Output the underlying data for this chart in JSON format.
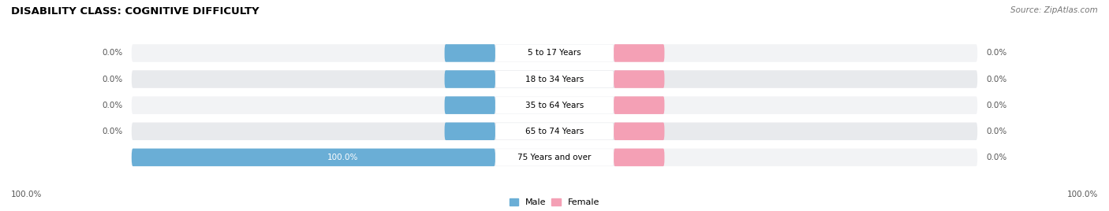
{
  "title": "DISABILITY CLASS: COGNITIVE DIFFICULTY",
  "source": "Source: ZipAtlas.com",
  "categories": [
    "5 to 17 Years",
    "18 to 34 Years",
    "35 to 64 Years",
    "65 to 74 Years",
    "75 Years and over"
  ],
  "male_values": [
    0.0,
    0.0,
    0.0,
    0.0,
    100.0
  ],
  "female_values": [
    0.0,
    0.0,
    0.0,
    0.0,
    0.0
  ],
  "male_color": "#6aaed6",
  "female_color": "#f4a0b5",
  "row_bg_color": "#e8eaed",
  "row_bg_color2": "#f2f3f5",
  "center_label_bg": "#ffffff",
  "title_fontsize": 9.5,
  "label_fontsize": 8,
  "max_value": 100.0,
  "legend_male": "Male",
  "legend_female": "Female",
  "axis_label_left": "100.0%",
  "axis_label_right": "100.0%",
  "value_label_color": "#555555",
  "source_color": "#777777"
}
